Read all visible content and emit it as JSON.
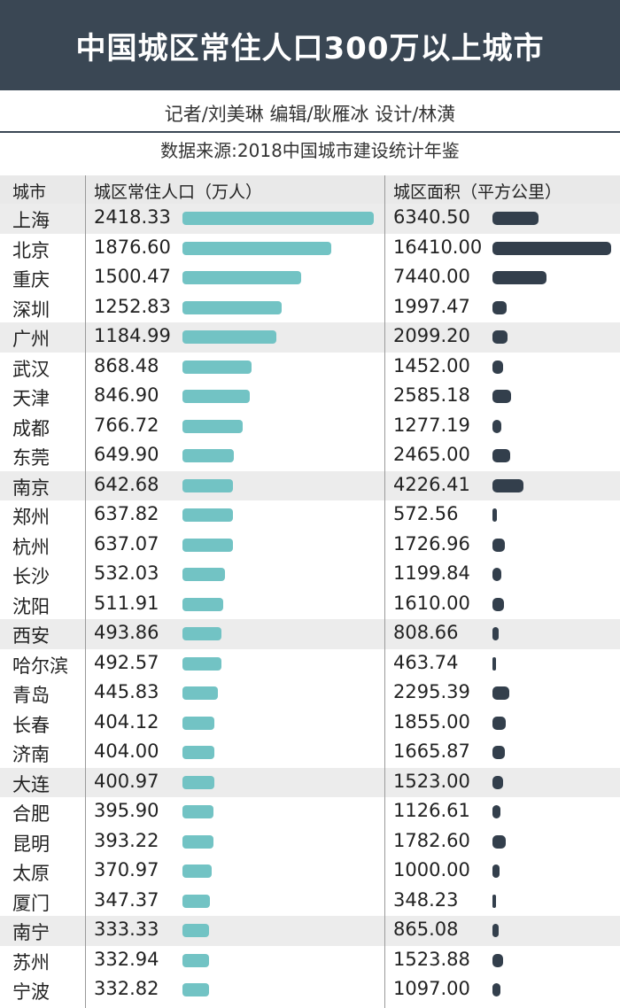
{
  "header": {
    "title": "中国城区常住人口300万以上城市",
    "credits": "记者/刘美琳  编辑/耿雁冰  设计/林潢",
    "source": "数据来源:2018中国城市建设统计年鉴"
  },
  "columns": {
    "city": "城市",
    "population": "城区常住人口（万人）",
    "area": "城区面积（平方公里）"
  },
  "colors": {
    "title_bg": "#3a4754",
    "population_bar": "#72c3c4",
    "area_bar": "#333f4c",
    "row_shade": "#ececec"
  },
  "chart_data": {
    "type": "bar",
    "title": "中国城区常住人口300万以上城市",
    "categories": [
      "上海",
      "北京",
      "重庆",
      "深圳",
      "广州",
      "武汉",
      "天津",
      "成都",
      "东莞",
      "南京",
      "郑州",
      "杭州",
      "长沙",
      "沈阳",
      "西安",
      "哈尔滨",
      "青岛",
      "长春",
      "济南",
      "大连",
      "合肥",
      "昆明",
      "太原",
      "厦门",
      "南宁",
      "苏州",
      "宁波"
    ],
    "series": [
      {
        "name": "城区常住人口（万人）",
        "values": [
          2418.33,
          1876.6,
          1500.47,
          1252.83,
          1184.99,
          868.48,
          846.9,
          766.72,
          649.9,
          642.68,
          637.82,
          637.07,
          532.03,
          511.91,
          493.86,
          492.57,
          445.83,
          404.12,
          404.0,
          400.97,
          395.9,
          393.22,
          370.97,
          347.37,
          333.33,
          332.94,
          332.82
        ],
        "labels": [
          "2418.33",
          "1876.60",
          "1500.47",
          "1252.83",
          "1184.99",
          "868.48",
          "846.90",
          "766.72",
          "649.90",
          "642.68",
          "637.82",
          "637.07",
          "532.03",
          "511.91",
          "493.86",
          "492.57",
          "445.83",
          "404.12",
          "404.00",
          "400.97",
          "395.90",
          "393.22",
          "370.97",
          "347.37",
          "333.33",
          "332.94",
          "332.82"
        ]
      },
      {
        "name": "城区面积（平方公里）",
        "values": [
          6340.5,
          16410.0,
          7440.0,
          1997.47,
          2099.2,
          1452.0,
          2585.18,
          1277.19,
          2465.0,
          4226.41,
          572.56,
          1726.96,
          1199.84,
          1610.0,
          808.66,
          463.74,
          2295.39,
          1855.0,
          1665.87,
          1523.0,
          1126.61,
          1782.6,
          1000.0,
          348.23,
          865.08,
          1523.88,
          1097.0
        ],
        "labels": [
          "6340.50",
          "16410.00",
          "7440.00",
          "1997.47",
          "2099.20",
          "1452.00",
          "2585.18",
          "1277.19",
          "2465.00",
          "4226.41",
          "572.56",
          "1726.96",
          "1199.84",
          "1610.00",
          "808.66",
          "463.74",
          "2295.39",
          "1855.00",
          "1665.87",
          "1523.00",
          "1126.61",
          "1782.60",
          "1000.00",
          "348.23",
          "865.08",
          "1523.88",
          "1097.00"
        ]
      }
    ],
    "shaded_rows": [
      0,
      4,
      9,
      14,
      19,
      24
    ]
  }
}
